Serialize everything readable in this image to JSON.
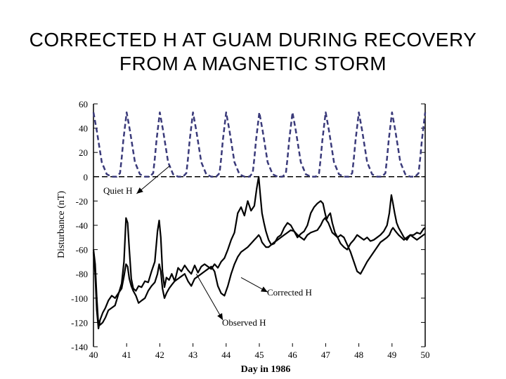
{
  "title_lines": [
    "CORRECTED H AT GUAM  DURING RECOVERY",
    "FROM A MAGNETIC STORM"
  ],
  "chart_data": {
    "type": "line",
    "title": "CORRECTED H AT GUAM  DURING RECOVERY FROM A MAGNETIC STORM",
    "xlabel": "Day in 1986",
    "ylabel": "Disturbance (nT)",
    "xlim": [
      40,
      50
    ],
    "ylim": [
      -140,
      60
    ],
    "xticks": [
      40,
      41,
      42,
      43,
      44,
      45,
      46,
      47,
      48,
      49,
      50
    ],
    "yticks": [
      60,
      40,
      20,
      0,
      -20,
      -40,
      -60,
      -80,
      -100,
      -120,
      -140
    ],
    "baseline": 0,
    "colors": {
      "quiet": "#3a3a7a",
      "axis": "#000000"
    },
    "annotations": [
      {
        "text": "Quiet H",
        "x": 41.3,
        "y": -14,
        "tx": 42.3,
        "ty": 9
      },
      {
        "text": "Corrected H",
        "x": 45.25,
        "y": -95,
        "tx": 44.45,
        "ty": -83
      },
      {
        "text": "Observed H",
        "x": 43.9,
        "y": -118,
        "tx": 43.1,
        "ty": -80
      }
    ],
    "series": [
      {
        "name": "Quiet H",
        "style": "dashed",
        "period": 1,
        "peak_x": 40.0,
        "values_x": [
          0.0,
          0.1,
          0.25,
          0.4,
          0.55,
          0.7,
          0.8,
          0.85,
          0.9,
          1.0
        ],
        "values_y": [
          53,
          38,
          12,
          2,
          0,
          0,
          3,
          15,
          30,
          53
        ]
      },
      {
        "name": "Observed H",
        "style": "solid",
        "x": [
          40.0,
          40.05,
          40.1,
          40.14,
          40.2,
          40.28,
          40.36,
          40.45,
          40.55,
          40.65,
          40.75,
          40.85,
          40.92,
          40.98,
          41.03,
          41.08,
          41.14,
          41.2,
          41.28,
          41.36,
          41.45,
          41.55,
          41.65,
          41.75,
          41.85,
          41.93,
          41.98,
          42.03,
          42.08,
          42.14,
          42.2,
          42.28,
          42.36,
          42.45,
          42.55,
          42.65,
          42.75,
          42.85,
          42.95,
          43.05,
          43.15,
          43.25,
          43.35,
          43.45,
          43.55,
          43.65,
          43.75,
          43.85,
          43.95,
          44.05,
          44.15,
          44.25,
          44.35,
          44.45,
          44.55,
          44.65,
          44.75,
          44.85,
          44.92,
          44.98,
          45.03,
          45.08,
          45.14,
          45.2,
          45.28,
          45.36,
          45.45,
          45.55,
          45.65,
          45.75,
          45.85,
          45.95,
          46.05,
          46.15,
          46.25,
          46.35,
          46.45,
          46.55,
          46.65,
          46.75,
          46.85,
          46.92,
          46.98,
          47.03,
          47.08,
          47.14,
          47.2,
          47.28,
          47.36,
          47.45,
          47.55,
          47.65,
          47.75,
          47.85,
          47.95,
          48.05,
          48.15,
          48.25,
          48.35,
          48.45,
          48.55,
          48.65,
          48.75,
          48.85,
          48.92,
          48.98,
          49.03,
          49.08,
          49.14,
          49.2,
          49.28,
          49.36,
          49.45,
          49.55,
          49.65,
          49.75,
          49.85,
          49.95,
          50.0
        ],
        "y": [
          -60,
          -72,
          -100,
          -118,
          -122,
          -120,
          -116,
          -110,
          -108,
          -106,
          -97,
          -88,
          -70,
          -34,
          -38,
          -60,
          -84,
          -92,
          -94,
          -90,
          -91,
          -86,
          -87,
          -78,
          -70,
          -45,
          -36,
          -50,
          -78,
          -91,
          -83,
          -85,
          -80,
          -86,
          -75,
          -78,
          -73,
          -77,
          -80,
          -73,
          -79,
          -74,
          -72,
          -74,
          -76,
          -72,
          -75,
          -70,
          -67,
          -60,
          -52,
          -46,
          -30,
          -25,
          -32,
          -20,
          -28,
          -24,
          -10,
          0,
          -15,
          -30,
          -38,
          -45,
          -52,
          -56,
          -55,
          -50,
          -48,
          -42,
          -38,
          -40,
          -45,
          -50,
          -47,
          -45,
          -40,
          -30,
          -25,
          -22,
          -20,
          -22,
          -30,
          -35,
          -32,
          -30,
          -38,
          -46,
          -50,
          -55,
          -58,
          -60,
          -55,
          -52,
          -48,
          -50,
          -52,
          -50,
          -53,
          -52,
          -50,
          -48,
          -45,
          -40,
          -30,
          -15,
          -22,
          -30,
          -38,
          -42,
          -46,
          -50,
          -52,
          -48,
          -48,
          -46,
          -47,
          -43,
          -42
        ]
      },
      {
        "name": "Corrected H",
        "style": "solid",
        "x": [
          40.0,
          40.05,
          40.1,
          40.15,
          40.2,
          40.28,
          40.36,
          40.45,
          40.55,
          40.65,
          40.75,
          40.85,
          40.92,
          40.98,
          41.03,
          41.08,
          41.14,
          41.2,
          41.28,
          41.36,
          41.45,
          41.55,
          41.65,
          41.75,
          41.85,
          41.93,
          41.98,
          42.03,
          42.08,
          42.14,
          42.2,
          42.28,
          42.36,
          42.45,
          42.55,
          42.65,
          42.75,
          42.85,
          42.95,
          43.05,
          43.15,
          43.25,
          43.35,
          43.45,
          43.55,
          43.65,
          43.75,
          43.85,
          43.95,
          44.05,
          44.15,
          44.25,
          44.35,
          44.45,
          44.55,
          44.65,
          44.75,
          44.85,
          44.92,
          44.98,
          45.03,
          45.08,
          45.14,
          45.2,
          45.28,
          45.36,
          45.45,
          45.55,
          45.65,
          45.75,
          45.85,
          45.95,
          46.05,
          46.15,
          46.25,
          46.35,
          46.45,
          46.55,
          46.65,
          46.75,
          46.85,
          46.92,
          46.98,
          47.03,
          47.08,
          47.14,
          47.2,
          47.28,
          47.36,
          47.45,
          47.55,
          47.65,
          47.75,
          47.85,
          47.95,
          48.05,
          48.15,
          48.25,
          48.35,
          48.45,
          48.55,
          48.65,
          48.75,
          48.85,
          48.92,
          48.98,
          49.03,
          49.08,
          49.14,
          49.2,
          49.28,
          49.36,
          49.45,
          49.55,
          49.65,
          49.75,
          49.85,
          49.95,
          50.0
        ],
        "y": [
          -62,
          -80,
          -110,
          -125,
          -118,
          -112,
          -108,
          -102,
          -98,
          -100,
          -96,
          -92,
          -82,
          -72,
          -74,
          -84,
          -90,
          -94,
          -98,
          -104,
          -102,
          -100,
          -94,
          -90,
          -87,
          -80,
          -72,
          -78,
          -92,
          -100,
          -96,
          -92,
          -89,
          -86,
          -84,
          -82,
          -80,
          -86,
          -90,
          -84,
          -82,
          -80,
          -78,
          -76,
          -74,
          -78,
          -90,
          -96,
          -98,
          -90,
          -80,
          -72,
          -66,
          -62,
          -60,
          -58,
          -55,
          -52,
          -50,
          -48,
          -50,
          -54,
          -56,
          -58,
          -58,
          -56,
          -54,
          -52,
          -50,
          -48,
          -46,
          -44,
          -45,
          -48,
          -50,
          -52,
          -48,
          -46,
          -45,
          -44,
          -40,
          -36,
          -34,
          -36,
          -38,
          -42,
          -46,
          -48,
          -50,
          -48,
          -50,
          -56,
          -62,
          -70,
          -78,
          -80,
          -75,
          -70,
          -66,
          -62,
          -58,
          -54,
          -52,
          -50,
          -48,
          -44,
          -42,
          -44,
          -46,
          -48,
          -50,
          -52,
          -50,
          -48,
          -50,
          -52,
          -50,
          -48,
          -47
        ]
      }
    ]
  }
}
